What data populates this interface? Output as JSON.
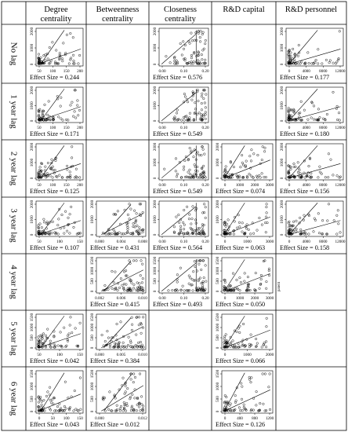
{
  "columns": [
    "Degree centrality",
    "Betweenness centrality",
    "Closeness centrality",
    "R&D capital",
    "R&D personnel"
  ],
  "rows": [
    "No lag",
    "1 year lag",
    "2 year lag",
    "3 year lag",
    "4 year lag",
    "5 year lag",
    "6 year lag"
  ],
  "effect_prefix": "Effect Size = ",
  "stray_label": "patent",
  "chart_data": {
    "type": "scatter",
    "y_ticks": [
      0,
      500,
      1000,
      1500,
      2000
    ],
    "cells": [
      {
        "row": 0,
        "col": 0,
        "x_ticks": [
          50,
          100,
          150,
          200
        ],
        "y_ticks": [
          0,
          1000,
          2000
        ],
        "effect": "0.244"
      },
      {
        "row": 0,
        "col": 2,
        "x_ticks": [
          "0.00",
          "0.10",
          "0.20"
        ],
        "y_ticks": [
          0,
          1000,
          2000
        ],
        "effect": "0.576"
      },
      {
        "row": 0,
        "col": 4,
        "x_ticks": [
          0,
          4000,
          8000,
          12000
        ],
        "y_ticks": [
          0,
          1000,
          2000
        ],
        "effect": "0.177"
      },
      {
        "row": 1,
        "col": 0,
        "x_ticks": [
          50,
          100,
          150,
          200
        ],
        "y_ticks": [
          0,
          1000,
          2000
        ],
        "effect": "0.171"
      },
      {
        "row": 1,
        "col": 2,
        "x_ticks": [
          "0.00",
          "0.10",
          "0.20"
        ],
        "y_ticks": [
          0,
          1000,
          2000
        ],
        "effect": "0.549"
      },
      {
        "row": 1,
        "col": 4,
        "x_ticks": [
          0,
          4000,
          8000,
          12000
        ],
        "y_ticks": [
          0,
          1000,
          2000
        ],
        "effect": "0.180"
      },
      {
        "row": 2,
        "col": 0,
        "x_ticks": [
          50,
          100,
          150,
          200
        ],
        "y_ticks": [
          0,
          1000,
          2000
        ],
        "effect": "0.125"
      },
      {
        "row": 2,
        "col": 2,
        "x_ticks": [
          "0.00",
          "0.10",
          "0.20"
        ],
        "y_ticks": [
          0,
          1000,
          2000
        ],
        "effect": "0.549"
      },
      {
        "row": 2,
        "col": 3,
        "x_ticks": [
          0,
          1000,
          2000,
          3000
        ],
        "y_ticks": [
          0,
          1000,
          2000
        ],
        "effect": "0.074"
      },
      {
        "row": 2,
        "col": 4,
        "x_ticks": [
          0,
          4000,
          8000,
          12000
        ],
        "y_ticks": [
          0,
          1000,
          2000
        ],
        "effect": "0.156"
      },
      {
        "row": 3,
        "col": 0,
        "x_ticks": [
          50,
          100,
          150
        ],
        "y_ticks": [
          0,
          1000,
          2000
        ],
        "effect": "0.107"
      },
      {
        "row": 3,
        "col": 1,
        "x_ticks": [
          "0.000",
          "0.004",
          "0.008"
        ],
        "y_ticks": [
          0,
          1000,
          2000
        ],
        "effect": "0.431"
      },
      {
        "row": 3,
        "col": 2,
        "x_ticks": [
          "0.00",
          "0.10",
          "0.20"
        ],
        "y_ticks": [
          0,
          1000,
          2000
        ],
        "effect": "0.564"
      },
      {
        "row": 3,
        "col": 3,
        "x_ticks": [
          0,
          1000,
          3000
        ],
        "y_ticks": [
          0,
          1000,
          2000
        ],
        "effect": "0.063"
      },
      {
        "row": 3,
        "col": 4,
        "x_ticks": [
          0,
          4000,
          8000,
          12000
        ],
        "y_ticks": [
          0,
          1000,
          2000
        ],
        "effect": "0.158"
      },
      {
        "row": 4,
        "col": 1,
        "x_ticks": [
          "0.002",
          "0.006",
          "0.010"
        ],
        "y_ticks": [
          0,
          500,
          1000,
          1500
        ],
        "effect": "0.415"
      },
      {
        "row": 4,
        "col": 2,
        "x_ticks": [
          "0.00",
          "0.10",
          "0.20"
        ],
        "y_ticks": [
          0,
          500,
          1000,
          1500
        ],
        "effect": "0.493"
      },
      {
        "row": 4,
        "col": 3,
        "x_ticks": [
          0,
          1000,
          2000,
          3000
        ],
        "y_ticks": [
          0,
          500,
          1000,
          1500
        ],
        "effect": "0.050"
      },
      {
        "row": 5,
        "col": 0,
        "x_ticks": [
          50,
          100,
          150
        ],
        "y_ticks": [
          0,
          500,
          1000,
          1500
        ],
        "effect": "0.042"
      },
      {
        "row": 5,
        "col": 1,
        "x_ticks": [
          "0.000",
          "0.005",
          "0.010"
        ],
        "y_ticks": [
          0,
          500,
          1000,
          1500
        ],
        "effect": "0.384"
      },
      {
        "row": 5,
        "col": 3,
        "x_ticks": [
          0,
          1000,
          2000
        ],
        "y_ticks": [
          0,
          500,
          1000,
          1500
        ],
        "effect": "0.066"
      },
      {
        "row": 6,
        "col": 0,
        "x_ticks": [
          0,
          50,
          100,
          150
        ],
        "y_ticks": [
          0,
          500,
          1000,
          1500
        ],
        "effect": "0.043"
      },
      {
        "row": 6,
        "col": 1,
        "x_ticks": [
          "0.000",
          "0.012"
        ],
        "y_ticks": [
          0,
          500,
          1000,
          1500
        ],
        "effect": "0.012"
      },
      {
        "row": 6,
        "col": 3,
        "x_ticks": [
          0,
          400,
          800,
          1200
        ],
        "y_ticks": [
          0,
          500,
          1000,
          1500
        ],
        "effect": "0.126"
      }
    ]
  }
}
